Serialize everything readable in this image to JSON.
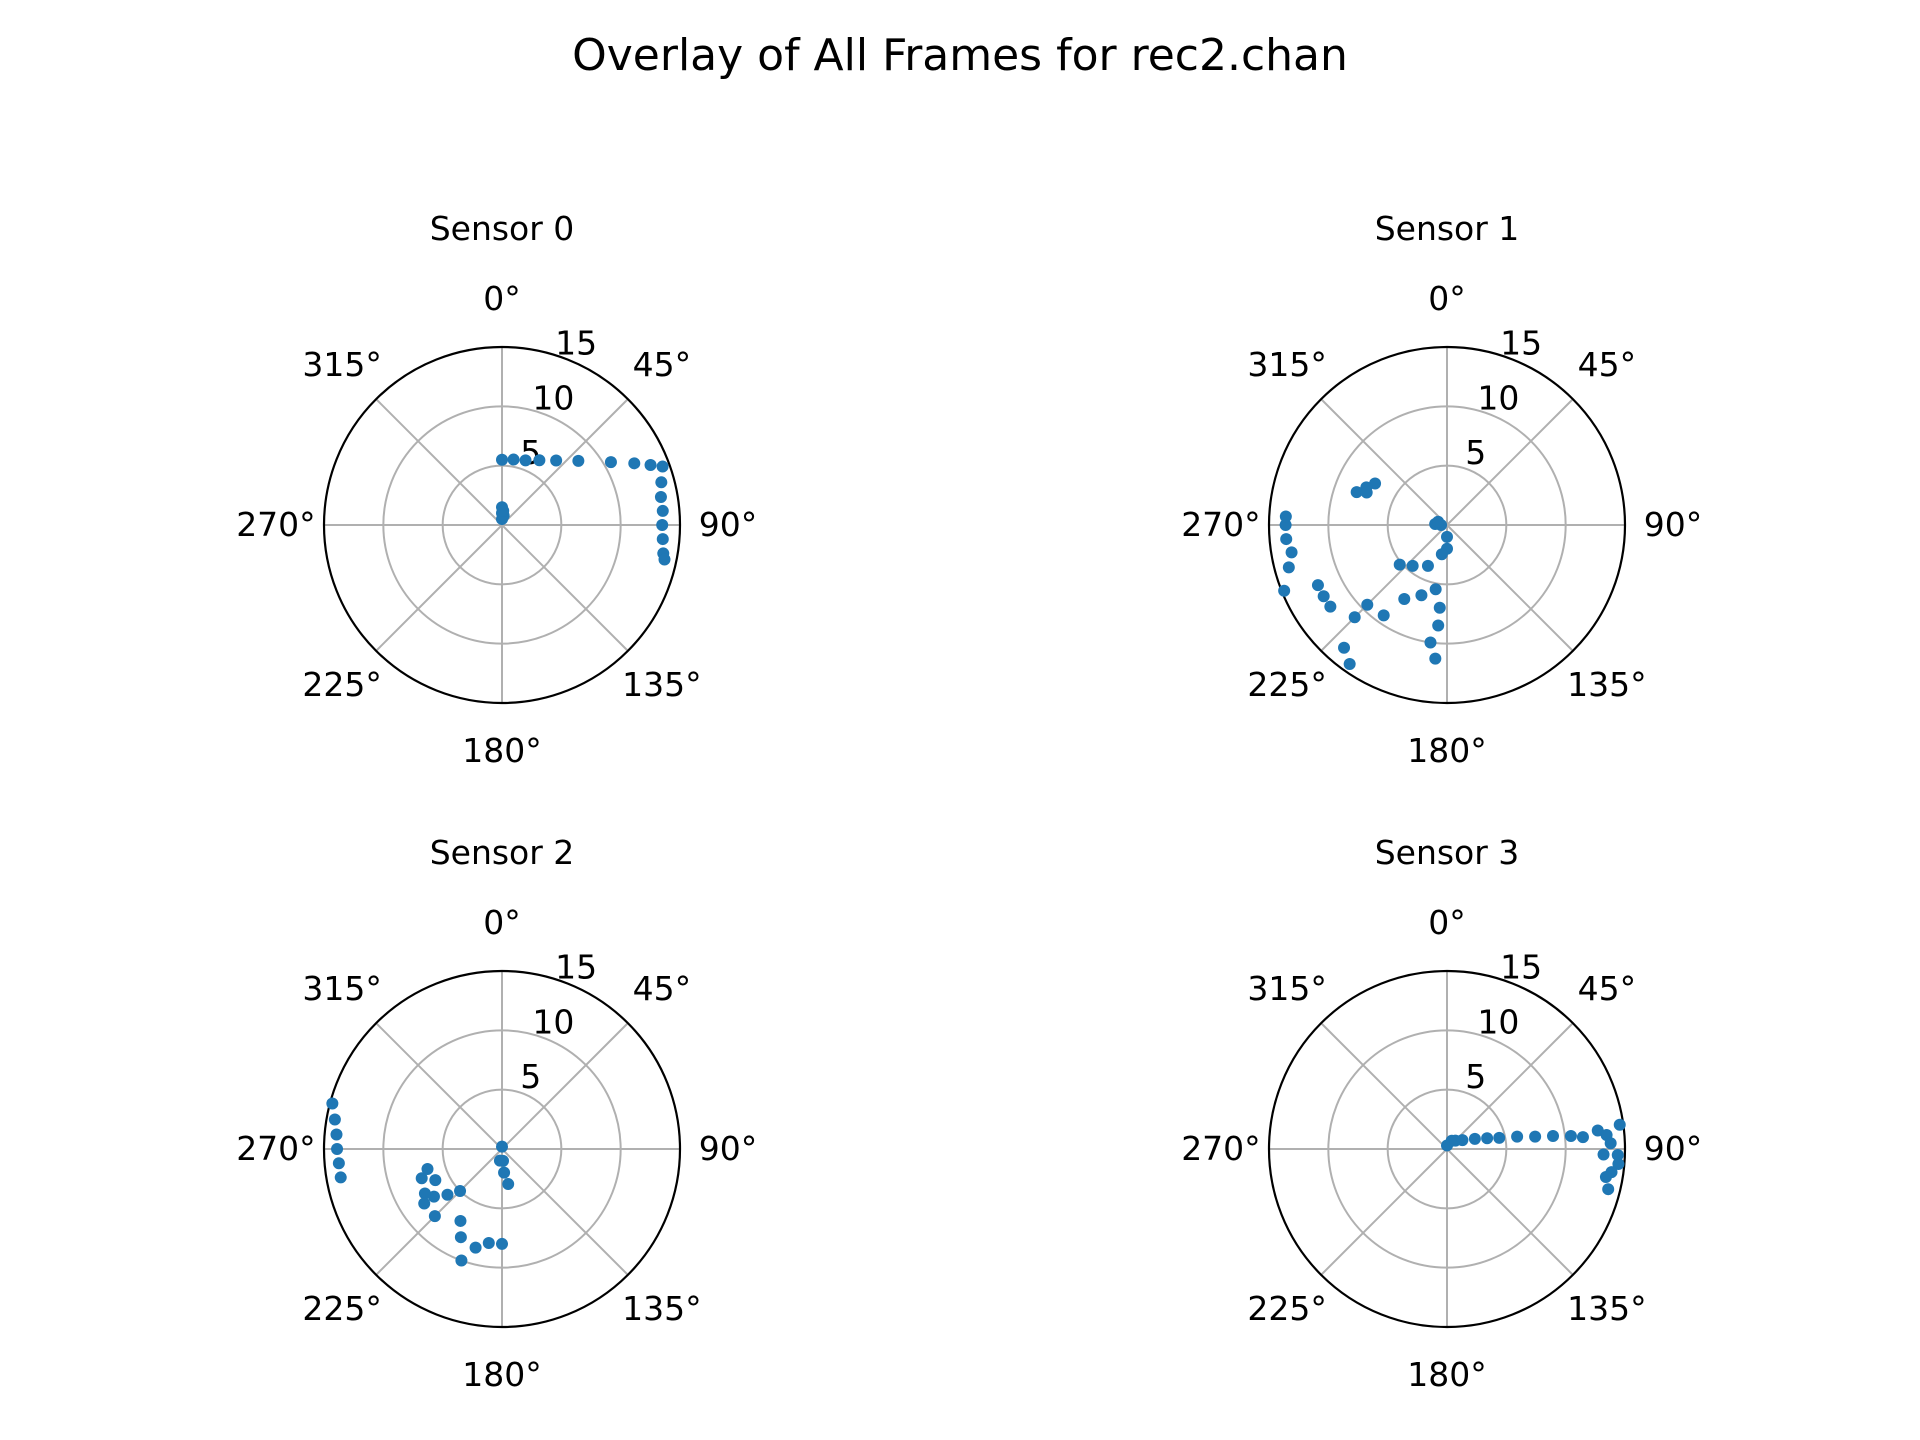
{
  "figure": {
    "title": "Overlay of All Frames for rec2.chan"
  },
  "style": {
    "point_color": "#1f77b4",
    "grid_color": "#b0b0b0",
    "axis_color": "#000000"
  },
  "chart_data": [
    {
      "type": "scatter",
      "projection": "polar",
      "title": "Sensor 0",
      "theta_zero_location": "N",
      "theta_direction": "clockwise",
      "theta_ticks": [
        "0°",
        "45°",
        "90°",
        "135°",
        "180°",
        "225°",
        "270°",
        "315°"
      ],
      "r_ticks": [
        "5",
        "10",
        "15"
      ],
      "rlim": [
        0,
        15
      ],
      "grid": true,
      "points": [
        {
          "theta": 0,
          "r": 0.5
        },
        {
          "theta": 0,
          "r": 1.0
        },
        {
          "theta": 0,
          "r": 1.5
        },
        {
          "theta": 10,
          "r": 0.8
        },
        {
          "theta": 5,
          "r": 1.2
        },
        {
          "theta": 0,
          "r": 5.5
        },
        {
          "theta": 10,
          "r": 5.6
        },
        {
          "theta": 20,
          "r": 5.8
        },
        {
          "theta": 30,
          "r": 6.3
        },
        {
          "theta": 40,
          "r": 7.1
        },
        {
          "theta": 50,
          "r": 8.4
        },
        {
          "theta": 60,
          "r": 10.6
        },
        {
          "theta": 65,
          "r": 12.3
        },
        {
          "theta": 68,
          "r": 13.5
        },
        {
          "theta": 70,
          "r": 14.4
        },
        {
          "theta": 75,
          "r": 13.9
        },
        {
          "theta": 80,
          "r": 13.6
        },
        {
          "theta": 85,
          "r": 13.6
        },
        {
          "theta": 90,
          "r": 13.5
        },
        {
          "theta": 95,
          "r": 13.6
        },
        {
          "theta": 100,
          "r": 13.8
        },
        {
          "theta": 102,
          "r": 14.0
        }
      ]
    },
    {
      "type": "scatter",
      "projection": "polar",
      "title": "Sensor 1",
      "theta_zero_location": "N",
      "theta_direction": "clockwise",
      "theta_ticks": [
        "0°",
        "45°",
        "90°",
        "135°",
        "180°",
        "225°",
        "270°",
        "315°"
      ],
      "r_ticks": [
        "5",
        "10",
        "15"
      ],
      "rlim": [
        0,
        15
      ],
      "grid": true,
      "points": [
        {
          "theta": 270,
          "r": 0.5
        },
        {
          "theta": 275,
          "r": 1.0
        },
        {
          "theta": 290,
          "r": 0.8
        },
        {
          "theta": 180,
          "r": 1.0
        },
        {
          "theta": 180,
          "r": 2.0
        },
        {
          "theta": 190,
          "r": 2.5
        },
        {
          "theta": 205,
          "r": 3.8
        },
        {
          "theta": 220,
          "r": 4.5
        },
        {
          "theta": 230,
          "r": 5.2
        },
        {
          "theta": 190,
          "r": 5.5
        },
        {
          "theta": 200,
          "r": 6.3
        },
        {
          "theta": 185,
          "r": 7.0
        },
        {
          "theta": 185,
          "r": 8.5
        },
        {
          "theta": 188,
          "r": 10.0
        },
        {
          "theta": 185,
          "r": 11.3
        },
        {
          "theta": 210,
          "r": 7.2
        },
        {
          "theta": 215,
          "r": 9.3
        },
        {
          "theta": 225,
          "r": 9.5
        },
        {
          "theta": 225,
          "r": 11.0
        },
        {
          "theta": 220,
          "r": 13.5
        },
        {
          "theta": 215,
          "r": 14.3
        },
        {
          "theta": 235,
          "r": 12.0
        },
        {
          "theta": 240,
          "r": 12.0
        },
        {
          "theta": 245,
          "r": 12.0
        },
        {
          "theta": 248,
          "r": 14.8
        },
        {
          "theta": 255,
          "r": 13.8
        },
        {
          "theta": 260,
          "r": 13.3
        },
        {
          "theta": 265,
          "r": 13.6
        },
        {
          "theta": 270,
          "r": 13.6
        },
        {
          "theta": 273,
          "r": 13.6
        },
        {
          "theta": 300,
          "r": 7.0
        },
        {
          "theta": 295,
          "r": 7.5
        },
        {
          "theta": 290,
          "r": 8.1
        },
        {
          "theta": 292,
          "r": 7.3
        }
      ]
    },
    {
      "type": "scatter",
      "projection": "polar",
      "title": "Sensor 2",
      "theta_zero_location": "N",
      "theta_direction": "clockwise",
      "theta_ticks": [
        "0°",
        "45°",
        "90°",
        "135°",
        "180°",
        "225°",
        "270°",
        "315°"
      ],
      "r_ticks": [
        "5",
        "10",
        "15"
      ],
      "rlim": [
        0,
        15
      ],
      "grid": true,
      "points": [
        {
          "theta": 0,
          "r": 0.2
        },
        {
          "theta": 175,
          "r": 1.0
        },
        {
          "theta": 175,
          "r": 2.0
        },
        {
          "theta": 170,
          "r": 3.0
        },
        {
          "theta": 190,
          "r": 1.0
        },
        {
          "theta": 225,
          "r": 5.0
        },
        {
          "theta": 230,
          "r": 6.0
        },
        {
          "theta": 235,
          "r": 7.0
        },
        {
          "theta": 240,
          "r": 7.5
        },
        {
          "theta": 250,
          "r": 7.2
        },
        {
          "theta": 255,
          "r": 6.5
        },
        {
          "theta": 245,
          "r": 6.2
        },
        {
          "theta": 235,
          "r": 8.0
        },
        {
          "theta": 225,
          "r": 8.0
        },
        {
          "theta": 210,
          "r": 7.0
        },
        {
          "theta": 205,
          "r": 8.2
        },
        {
          "theta": 200,
          "r": 10.0
        },
        {
          "theta": 195,
          "r": 8.6
        },
        {
          "theta": 188,
          "r": 8.0
        },
        {
          "theta": 180,
          "r": 8.0
        },
        {
          "theta": 275,
          "r": 14.0
        },
        {
          "theta": 280,
          "r": 14.3
        },
        {
          "theta": 285,
          "r": 14.8
        },
        {
          "theta": 265,
          "r": 13.8
        },
        {
          "theta": 260,
          "r": 13.8
        },
        {
          "theta": 270,
          "r": 13.9
        }
      ]
    },
    {
      "type": "scatter",
      "projection": "polar",
      "title": "Sensor 3",
      "theta_zero_location": "N",
      "theta_direction": "clockwise",
      "theta_ticks": [
        "0°",
        "45°",
        "90°",
        "135°",
        "180°",
        "225°",
        "270°",
        "315°"
      ],
      "r_ticks": [
        "5",
        "10",
        "15"
      ],
      "rlim": [
        0,
        15
      ],
      "grid": true,
      "points": [
        {
          "theta": 0,
          "r": 0.3
        },
        {
          "theta": 30,
          "r": 0.8
        },
        {
          "theta": 45,
          "r": 1.0
        },
        {
          "theta": 60,
          "r": 1.5
        },
        {
          "theta": 70,
          "r": 2.5
        },
        {
          "theta": 75,
          "r": 3.5
        },
        {
          "theta": 78,
          "r": 4.5
        },
        {
          "theta": 80,
          "r": 6.0
        },
        {
          "theta": 82,
          "r": 7.5
        },
        {
          "theta": 83,
          "r": 9.0
        },
        {
          "theta": 84,
          "r": 10.5
        },
        {
          "theta": 85,
          "r": 11.5
        },
        {
          "theta": 83,
          "r": 12.8
        },
        {
          "theta": 85,
          "r": 13.5
        },
        {
          "theta": 88,
          "r": 13.8
        },
        {
          "theta": 82,
          "r": 14.7
        },
        {
          "theta": 92,
          "r": 13.2
        },
        {
          "theta": 95,
          "r": 14.5
        },
        {
          "theta": 98,
          "r": 14.0
        },
        {
          "theta": 100,
          "r": 13.6
        },
        {
          "theta": 104,
          "r": 14.0
        },
        {
          "theta": 92,
          "r": 14.4
        }
      ]
    }
  ]
}
